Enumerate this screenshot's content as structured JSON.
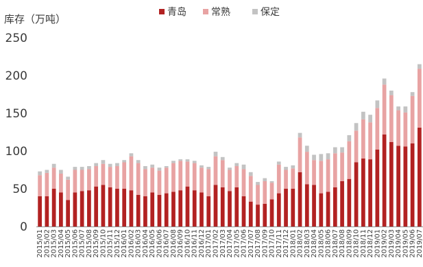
{
  "chart_data": {
    "type": "bar",
    "stacked": true,
    "ylabel": "库存（万吨）",
    "ylim": [
      0,
      250
    ],
    "yticks": [
      0,
      50,
      100,
      150,
      200,
      250
    ],
    "legend_position": "top-center",
    "grid": false,
    "categories": [
      "2015/01",
      "2015/02",
      "2015/03",
      "2015/04",
      "2015/05",
      "2015/06",
      "2015/07",
      "2015/08",
      "2015/09",
      "2015/10",
      "2015/11",
      "2015/12",
      "2016/01",
      "2016/02",
      "2016/03",
      "2016/04",
      "2016/05",
      "2016/06",
      "2016/07",
      "2016/08",
      "2016/09",
      "2016/10",
      "2016/11",
      "2016/12",
      "2017/01",
      "2017/02",
      "2017/03",
      "2017/04",
      "2017/05",
      "2017/06",
      "2017/07",
      "2017/08",
      "2017/09",
      "2017/10",
      "2017/11",
      "2017/12",
      "2018/01",
      "2018/02",
      "2018/03",
      "2018/04",
      "2018/05",
      "2018/06",
      "2018/07",
      "2018/08",
      "2018/09",
      "2018/10",
      "2018/11",
      "2018/12",
      "2019/01",
      "2019/02",
      "2019/03",
      "2019/04",
      "2019/05",
      "2019/06",
      "2019/07"
    ],
    "series": [
      {
        "name": "青岛",
        "color": "#b22222",
        "values": [
          40,
          40,
          50,
          45,
          35,
          45,
          47,
          48,
          53,
          55,
          52,
          50,
          50,
          48,
          42,
          40,
          45,
          42,
          44,
          46,
          48,
          53,
          48,
          45,
          40,
          55,
          52,
          47,
          52,
          40,
          33,
          29,
          30,
          36,
          44,
          50,
          50,
          72,
          56,
          55,
          44,
          46,
          52,
          60,
          63,
          85,
          90,
          89,
          102,
          122,
          112,
          107,
          106,
          110,
          131
        ]
      },
      {
        "name": "常熟",
        "color": "#e8a3a3",
        "values": [
          28,
          31,
          28,
          25,
          27,
          30,
          28,
          28,
          27,
          28,
          27,
          30,
          35,
          45,
          42,
          36,
          33,
          32,
          34,
          38,
          39,
          33,
          36,
          33,
          36,
          38,
          36,
          28,
          28,
          36,
          34,
          26,
          30,
          22,
          38,
          25,
          27,
          46,
          43,
          33,
          43,
          43,
          45,
          38,
          50,
          42,
          52,
          49,
          55,
          66,
          62,
          47,
          45,
          63,
          78
        ]
      },
      {
        "name": "保定",
        "color": "#c3c3c3",
        "values": [
          5,
          4,
          5,
          5,
          4,
          4,
          4,
          4,
          4,
          5,
          4,
          4,
          3,
          4,
          4,
          4,
          4,
          4,
          2,
          3,
          2,
          3,
          3,
          3,
          3,
          6,
          4,
          3,
          4,
          6,
          5,
          4,
          4,
          2,
          4,
          4,
          4,
          6,
          8,
          7,
          9,
          8,
          8,
          7,
          8,
          10,
          10,
          10,
          10,
          8,
          6,
          5,
          8,
          5,
          6
        ]
      }
    ]
  }
}
